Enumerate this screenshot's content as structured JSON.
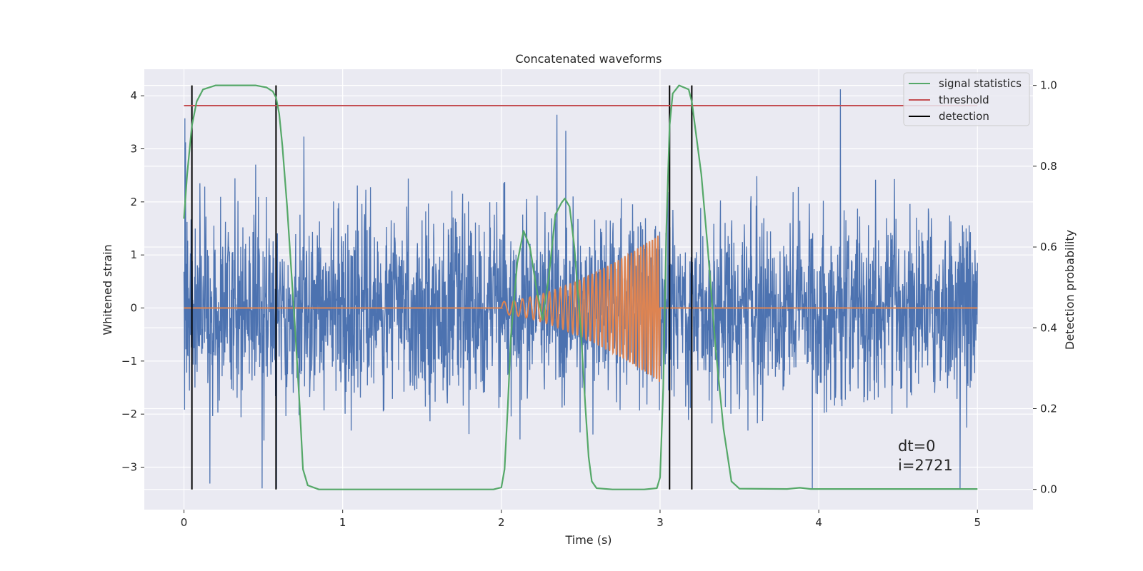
{
  "chart_data": {
    "type": "line",
    "title": "Concatenated waveforms",
    "xlabel": "Time (s)",
    "ylabel": "Whitened strain",
    "ylabel_right": "Detection probability",
    "xlim": [
      -0.25,
      5.35
    ],
    "ylim": [
      -3.8,
      4.5
    ],
    "ylim_right": [
      -0.05,
      1.04
    ],
    "x_ticks": [
      "0",
      "1",
      "2",
      "3",
      "4",
      "5"
    ],
    "x_tick_values": [
      0,
      1,
      2,
      3,
      4,
      5
    ],
    "y_ticks": [
      "−3",
      "−2",
      "−1",
      "0",
      "1",
      "2",
      "3",
      "4"
    ],
    "y_tick_values": [
      -3,
      -2,
      -1,
      0,
      1,
      2,
      3,
      4
    ],
    "y_right_ticks": [
      "0.0",
      "0.2",
      "0.4",
      "0.6",
      "0.8",
      "1.0"
    ],
    "y_right_tick_values": [
      0.0,
      0.2,
      0.4,
      0.6,
      0.8,
      1.0
    ],
    "grid": true,
    "legend_position": "top-right",
    "legend": [
      {
        "label": "signal statistics",
        "color": "#55a868"
      },
      {
        "label": "threshold",
        "color": "#c44e52"
      },
      {
        "label": "detection",
        "color": "#000000"
      }
    ],
    "annotations": [
      "dt=0",
      "i=2721"
    ],
    "colors": {
      "strain": "#4c72b0",
      "template": "#dd8452",
      "signal_statistics": "#55a868",
      "threshold": "#c44e52",
      "detection": "#000000",
      "background": "#eaeaf2",
      "grid": "#ffffff"
    },
    "series": [
      {
        "role": "strain",
        "axis": "left",
        "x_range": [
          0,
          5
        ],
        "typical_amplitude": 1.2,
        "max_peak": 4.3,
        "min_peak": -3.4
      },
      {
        "role": "template",
        "axis": "left",
        "chirp_start": 2.0,
        "chirp_end": 3.0,
        "start_amplitude": 0.12,
        "end_amplitude": 1.4,
        "x": [
          0,
          2.0,
          3.0,
          5.0
        ],
        "y": [
          0,
          0,
          0,
          0
        ]
      },
      {
        "name": "signal statistics",
        "axis": "right",
        "x": [
          0,
          0.02,
          0.05,
          0.08,
          0.12,
          0.2,
          0.3,
          0.45,
          0.52,
          0.56,
          0.58,
          0.6,
          0.62,
          0.65,
          0.7,
          0.73,
          0.75,
          0.78,
          0.85,
          1.0,
          1.5,
          1.95,
          2.0,
          2.02,
          2.04,
          2.06,
          2.1,
          2.14,
          2.18,
          2.22,
          2.26,
          2.3,
          2.34,
          2.38,
          2.4,
          2.43,
          2.46,
          2.5,
          2.53,
          2.55,
          2.57,
          2.6,
          2.7,
          2.9,
          2.98,
          3.0,
          3.02,
          3.04,
          3.06,
          3.08,
          3.12,
          3.18,
          3.2,
          3.22,
          3.26,
          3.3,
          3.35,
          3.4,
          3.45,
          3.5,
          3.8,
          3.88,
          3.95,
          4.2,
          4.6,
          5.0
        ],
        "y": [
          0.67,
          0.78,
          0.9,
          0.96,
          0.99,
          1.0,
          1.0,
          1.0,
          0.995,
          0.985,
          0.97,
          0.93,
          0.85,
          0.7,
          0.4,
          0.2,
          0.05,
          0.01,
          0.0,
          0.0,
          0.0,
          0.0,
          0.005,
          0.05,
          0.2,
          0.38,
          0.56,
          0.64,
          0.6,
          0.5,
          0.42,
          0.53,
          0.68,
          0.71,
          0.72,
          0.7,
          0.6,
          0.4,
          0.2,
          0.08,
          0.02,
          0.003,
          0.0,
          0.0,
          0.003,
          0.03,
          0.25,
          0.65,
          0.9,
          0.98,
          1.0,
          0.99,
          0.96,
          0.9,
          0.78,
          0.6,
          0.35,
          0.15,
          0.02,
          0.002,
          0.001,
          0.004,
          0.001,
          0.001,
          0.001,
          0.001
        ]
      },
      {
        "name": "threshold",
        "axis": "right",
        "x": [
          0,
          5
        ],
        "y": [
          0.95,
          0.95
        ]
      }
    ],
    "detection_lines": [
      0.05,
      0.58,
      3.06,
      3.2
    ]
  }
}
